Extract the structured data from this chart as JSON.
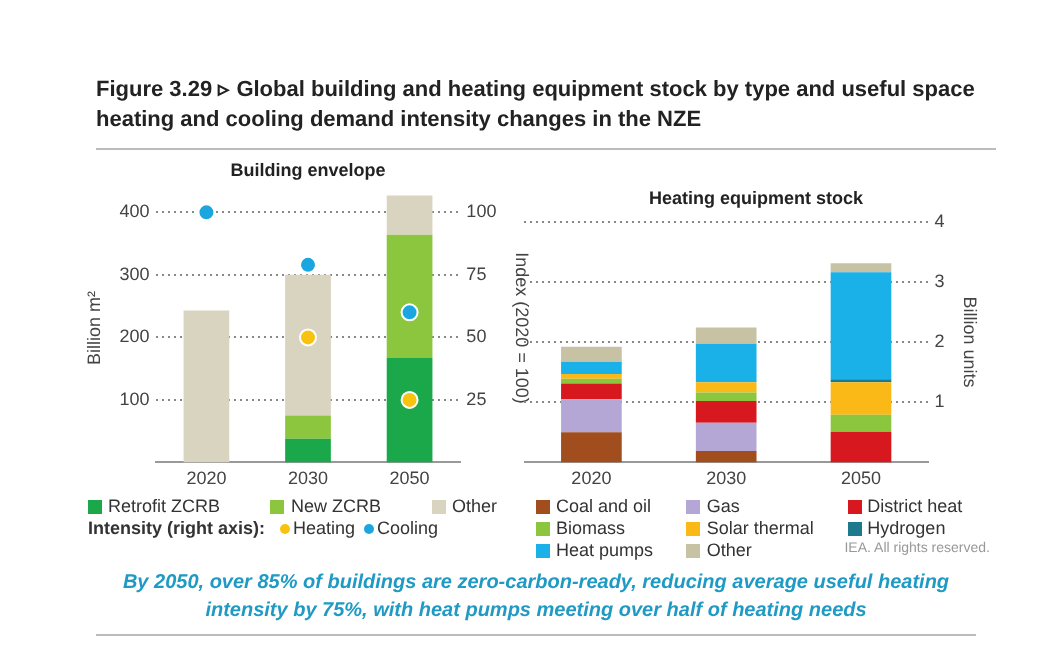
{
  "chart_data": [
    {
      "type": "bar",
      "title": "Building envelope",
      "stacked": true,
      "categories": [
        "2020",
        "2030",
        "2050"
      ],
      "ylabel": "Billion m²",
      "y2label": "Index (2020 = 100)",
      "ylim": [
        0,
        430
      ],
      "yticks": [
        100,
        200,
        300,
        400
      ],
      "y2lim": [
        0,
        107.5
      ],
      "y2ticks": [
        25,
        50,
        75,
        100
      ],
      "grid": "y",
      "legend": "bottom",
      "legend_title": "Intensity (right axis):",
      "marker": "circle",
      "annotations": [
        "Figure 3.29 ▹ Global building and heating equipment stock by type and useful space heating and cooling demand intensity changes in the NZE"
      ],
      "series": [
        {
          "name": "Retrofit ZCRB",
          "color": "#1aa84a",
          "values": [
            0,
            38,
            167
          ]
        },
        {
          "name": "New ZCRB",
          "color": "#8cc63f",
          "values": [
            0,
            37,
            197
          ]
        },
        {
          "name": "Other",
          "color": "#d9d4c0",
          "values": [
            243,
            225,
            63
          ]
        },
        {
          "name": "Heating",
          "type": "scatter",
          "axis": "y2",
          "color": "#f9c20f",
          "values": [
            null,
            50,
            25
          ]
        },
        {
          "name": "Cooling",
          "type": "scatter",
          "axis": "y2",
          "color": "#1ca6e0",
          "values": [
            100,
            79,
            60
          ]
        }
      ]
    },
    {
      "type": "bar",
      "title": "Heating equipment stock",
      "stacked": true,
      "categories": [
        "2020",
        "2030",
        "2050"
      ],
      "y2label": "Billion units",
      "y2lim": [
        0,
        4
      ],
      "y2ticks": [
        1,
        2,
        3,
        4
      ],
      "grid": "y",
      "legend": "bottom",
      "annotations": [
        "IEA. All rights reserved.",
        "By 2050, over 85% of buildings are zero-carbon-ready, reducing average useful heating intensity by 75%, with heat pumps meeting over half of heating needs"
      ],
      "series": [
        {
          "name": "Coal and oil",
          "axis": "y2",
          "color": "#a14d1e",
          "values": [
            0.5,
            0.19,
            0
          ]
        },
        {
          "name": "Gas",
          "axis": "y2",
          "color": "#b4a7d6",
          "values": [
            0.55,
            0.47,
            0
          ]
        },
        {
          "name": "District heat",
          "axis": "y2",
          "color": "#d7191f",
          "values": [
            0.26,
            0.36,
            0.51
          ]
        },
        {
          "name": "Biomass",
          "axis": "y2",
          "color": "#8cc63f",
          "values": [
            0.08,
            0.14,
            0.28
          ]
        },
        {
          "name": "Solar thermal",
          "axis": "y2",
          "color": "#fbb917",
          "values": [
            0.08,
            0.17,
            0.54
          ]
        },
        {
          "name": "Hydrogen",
          "axis": "y2",
          "color": "#1d7a8c",
          "values": [
            0,
            0,
            0.05
          ]
        },
        {
          "name": "Heat pumps",
          "axis": "y2",
          "color": "#1ab0e8",
          "values": [
            0.2,
            0.64,
            1.78
          ]
        },
        {
          "name": "Other",
          "axis": "y2",
          "color": "#c8c2a4",
          "values": [
            0.25,
            0.27,
            0.15
          ]
        }
      ]
    }
  ]
}
